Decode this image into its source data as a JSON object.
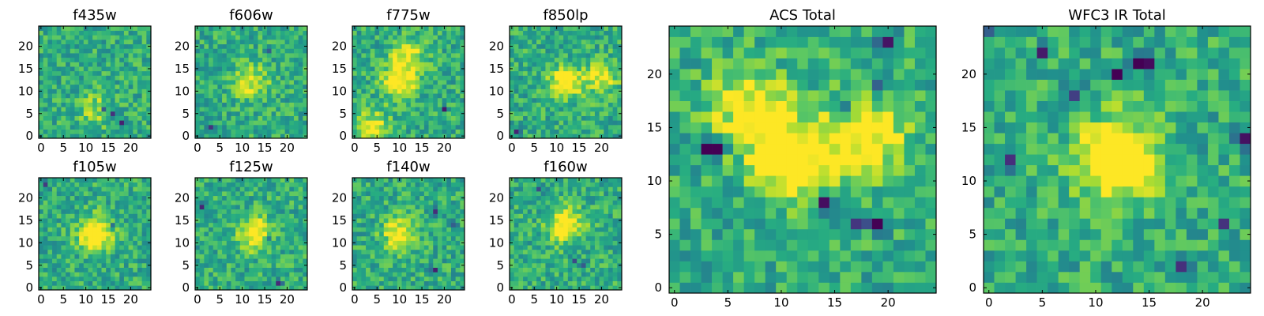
{
  "chart_data": [
    {
      "type": "heatmap",
      "title": "f435w",
      "grid_size": 25,
      "xlim": [
        0,
        24
      ],
      "ylim": [
        0,
        24
      ],
      "xticks": [
        0,
        5,
        10,
        15,
        20
      ],
      "yticks": [
        0,
        5,
        10,
        15,
        20
      ],
      "colormap": "viridis",
      "grid": false,
      "features": [
        {
          "x": 16,
          "y": 5,
          "level": -0.9
        },
        {
          "x": 18,
          "y": 3,
          "level": -0.7
        },
        {
          "x": 14,
          "y": 6,
          "level": -0.6
        },
        {
          "x": 12,
          "y": 6,
          "level": 0.4
        }
      ]
    },
    {
      "type": "heatmap",
      "title": "f606w",
      "grid_size": 25,
      "xlim": [
        0,
        24
      ],
      "ylim": [
        0,
        24
      ],
      "xticks": [
        0,
        5,
        10,
        15,
        20
      ],
      "yticks": [
        0,
        5,
        10,
        15,
        20
      ],
      "colormap": "viridis",
      "grid": false,
      "features": [
        {
          "x": 12,
          "y": 12,
          "level": 0.6
        },
        {
          "x": 3,
          "y": 2,
          "level": -0.8
        },
        {
          "x": 16,
          "y": 19,
          "level": -0.7
        }
      ]
    },
    {
      "type": "heatmap",
      "title": "f775w",
      "grid_size": 25,
      "xlim": [
        0,
        24
      ],
      "ylim": [
        0,
        24
      ],
      "xticks": [
        0,
        5,
        10,
        15,
        20
      ],
      "yticks": [
        0,
        5,
        10,
        15,
        20
      ],
      "colormap": "viridis",
      "grid": false,
      "features": [
        {
          "x": 10,
          "y": 12,
          "level": 0.8
        },
        {
          "x": 12,
          "y": 18,
          "level": 0.6
        },
        {
          "x": 4,
          "y": 2,
          "level": 0.6
        },
        {
          "x": 20,
          "y": 6,
          "level": -0.7
        }
      ]
    },
    {
      "type": "heatmap",
      "title": "f850lp",
      "grid_size": 25,
      "xlim": [
        0,
        24
      ],
      "ylim": [
        0,
        24
      ],
      "xticks": [
        0,
        5,
        10,
        15,
        20
      ],
      "yticks": [
        0,
        5,
        10,
        15,
        20
      ],
      "colormap": "viridis",
      "grid": false,
      "features": [
        {
          "x": 12,
          "y": 12,
          "level": 0.8
        },
        {
          "x": 20,
          "y": 13,
          "level": 0.6
        },
        {
          "x": 1,
          "y": 1,
          "level": -0.8
        }
      ]
    },
    {
      "type": "heatmap",
      "title": "f105w",
      "grid_size": 25,
      "xlim": [
        0,
        24
      ],
      "ylim": [
        0,
        24
      ],
      "xticks": [
        0,
        5,
        10,
        15,
        20
      ],
      "yticks": [
        0,
        5,
        10,
        15,
        20
      ],
      "colormap": "viridis",
      "grid": false,
      "features": [
        {
          "x": 12,
          "y": 12,
          "level": 1.0
        },
        {
          "x": 1,
          "y": 23,
          "level": -1.0
        },
        {
          "x": 16,
          "y": 14,
          "level": -0.6
        }
      ]
    },
    {
      "type": "heatmap",
      "title": "f125w",
      "grid_size": 25,
      "xlim": [
        0,
        24
      ],
      "ylim": [
        0,
        24
      ],
      "xticks": [
        0,
        5,
        10,
        15,
        20
      ],
      "yticks": [
        0,
        5,
        10,
        15,
        20
      ],
      "colormap": "viridis",
      "grid": false,
      "features": [
        {
          "x": 13,
          "y": 12,
          "level": 0.8
        },
        {
          "x": 16,
          "y": 11,
          "level": -0.9
        },
        {
          "x": 18,
          "y": 1,
          "level": -0.9
        },
        {
          "x": 1,
          "y": 18,
          "level": -0.7
        }
      ]
    },
    {
      "type": "heatmap",
      "title": "f140w",
      "grid_size": 25,
      "xlim": [
        0,
        24
      ],
      "ylim": [
        0,
        24
      ],
      "xticks": [
        0,
        5,
        10,
        15,
        20
      ],
      "yticks": [
        0,
        5,
        10,
        15,
        20
      ],
      "colormap": "viridis",
      "grid": false,
      "features": [
        {
          "x": 10,
          "y": 12,
          "level": 0.7
        },
        {
          "x": 22,
          "y": 14,
          "level": -0.8
        },
        {
          "x": 18,
          "y": 17,
          "level": -0.7
        },
        {
          "x": 18,
          "y": 4,
          "level": -0.7
        }
      ]
    },
    {
      "type": "heatmap",
      "title": "f160w",
      "grid_size": 25,
      "xlim": [
        0,
        24
      ],
      "ylim": [
        0,
        24
      ],
      "xticks": [
        0,
        5,
        10,
        15,
        20
      ],
      "yticks": [
        0,
        5,
        10,
        15,
        20
      ],
      "colormap": "viridis",
      "grid": false,
      "features": [
        {
          "x": 12,
          "y": 14,
          "level": 0.9
        },
        {
          "x": 14,
          "y": 6,
          "level": -0.9
        },
        {
          "x": 6,
          "y": 22,
          "level": -0.9
        },
        {
          "x": 16,
          "y": 5,
          "level": -0.8
        }
      ]
    },
    {
      "type": "heatmap",
      "title": "ACS Total",
      "grid_size": 25,
      "xlim": [
        0,
        24
      ],
      "ylim": [
        0,
        24
      ],
      "xticks": [
        0,
        5,
        10,
        15,
        20
      ],
      "yticks": [
        0,
        5,
        10,
        15,
        20
      ],
      "colormap": "viridis",
      "grid": false,
      "features": [
        {
          "x": 11,
          "y": 12,
          "level": 1.0
        },
        {
          "x": 18,
          "y": 14,
          "level": 0.8
        },
        {
          "x": 7,
          "y": 17,
          "level": 0.7
        },
        {
          "x": 3,
          "y": 13,
          "level": -1.0
        },
        {
          "x": 4,
          "y": 13,
          "level": -1.0
        },
        {
          "x": 20,
          "y": 23,
          "level": -1.0
        },
        {
          "x": 16,
          "y": 17,
          "level": -0.9
        },
        {
          "x": 14,
          "y": 8,
          "level": -0.9
        },
        {
          "x": 17,
          "y": 6,
          "level": -1.0
        },
        {
          "x": 19,
          "y": 6,
          "level": -1.0
        },
        {
          "x": 19,
          "y": 19,
          "level": -0.8
        }
      ]
    },
    {
      "type": "heatmap",
      "title": "WFC3 IR Total",
      "grid_size": 25,
      "xlim": [
        0,
        24
      ],
      "ylim": [
        0,
        24
      ],
      "xticks": [
        0,
        5,
        10,
        15,
        20
      ],
      "yticks": [
        0,
        5,
        10,
        15,
        20
      ],
      "colormap": "viridis",
      "grid": false,
      "features": [
        {
          "x": 12,
          "y": 12,
          "level": 1.2
        },
        {
          "x": 0,
          "y": 24,
          "level": -0.8
        },
        {
          "x": 8,
          "y": 18,
          "level": -1.0
        },
        {
          "x": 5,
          "y": 22,
          "level": -0.9
        },
        {
          "x": 14,
          "y": 21,
          "level": -1.0
        },
        {
          "x": 15,
          "y": 21,
          "level": -1.0
        },
        {
          "x": 2,
          "y": 12,
          "level": -0.9
        },
        {
          "x": 18,
          "y": 2,
          "level": -1.0
        },
        {
          "x": 24,
          "y": 14,
          "level": -0.8
        },
        {
          "x": 22,
          "y": 6,
          "level": -0.7
        },
        {
          "x": 12,
          "y": 20,
          "level": -0.8
        }
      ]
    }
  ]
}
